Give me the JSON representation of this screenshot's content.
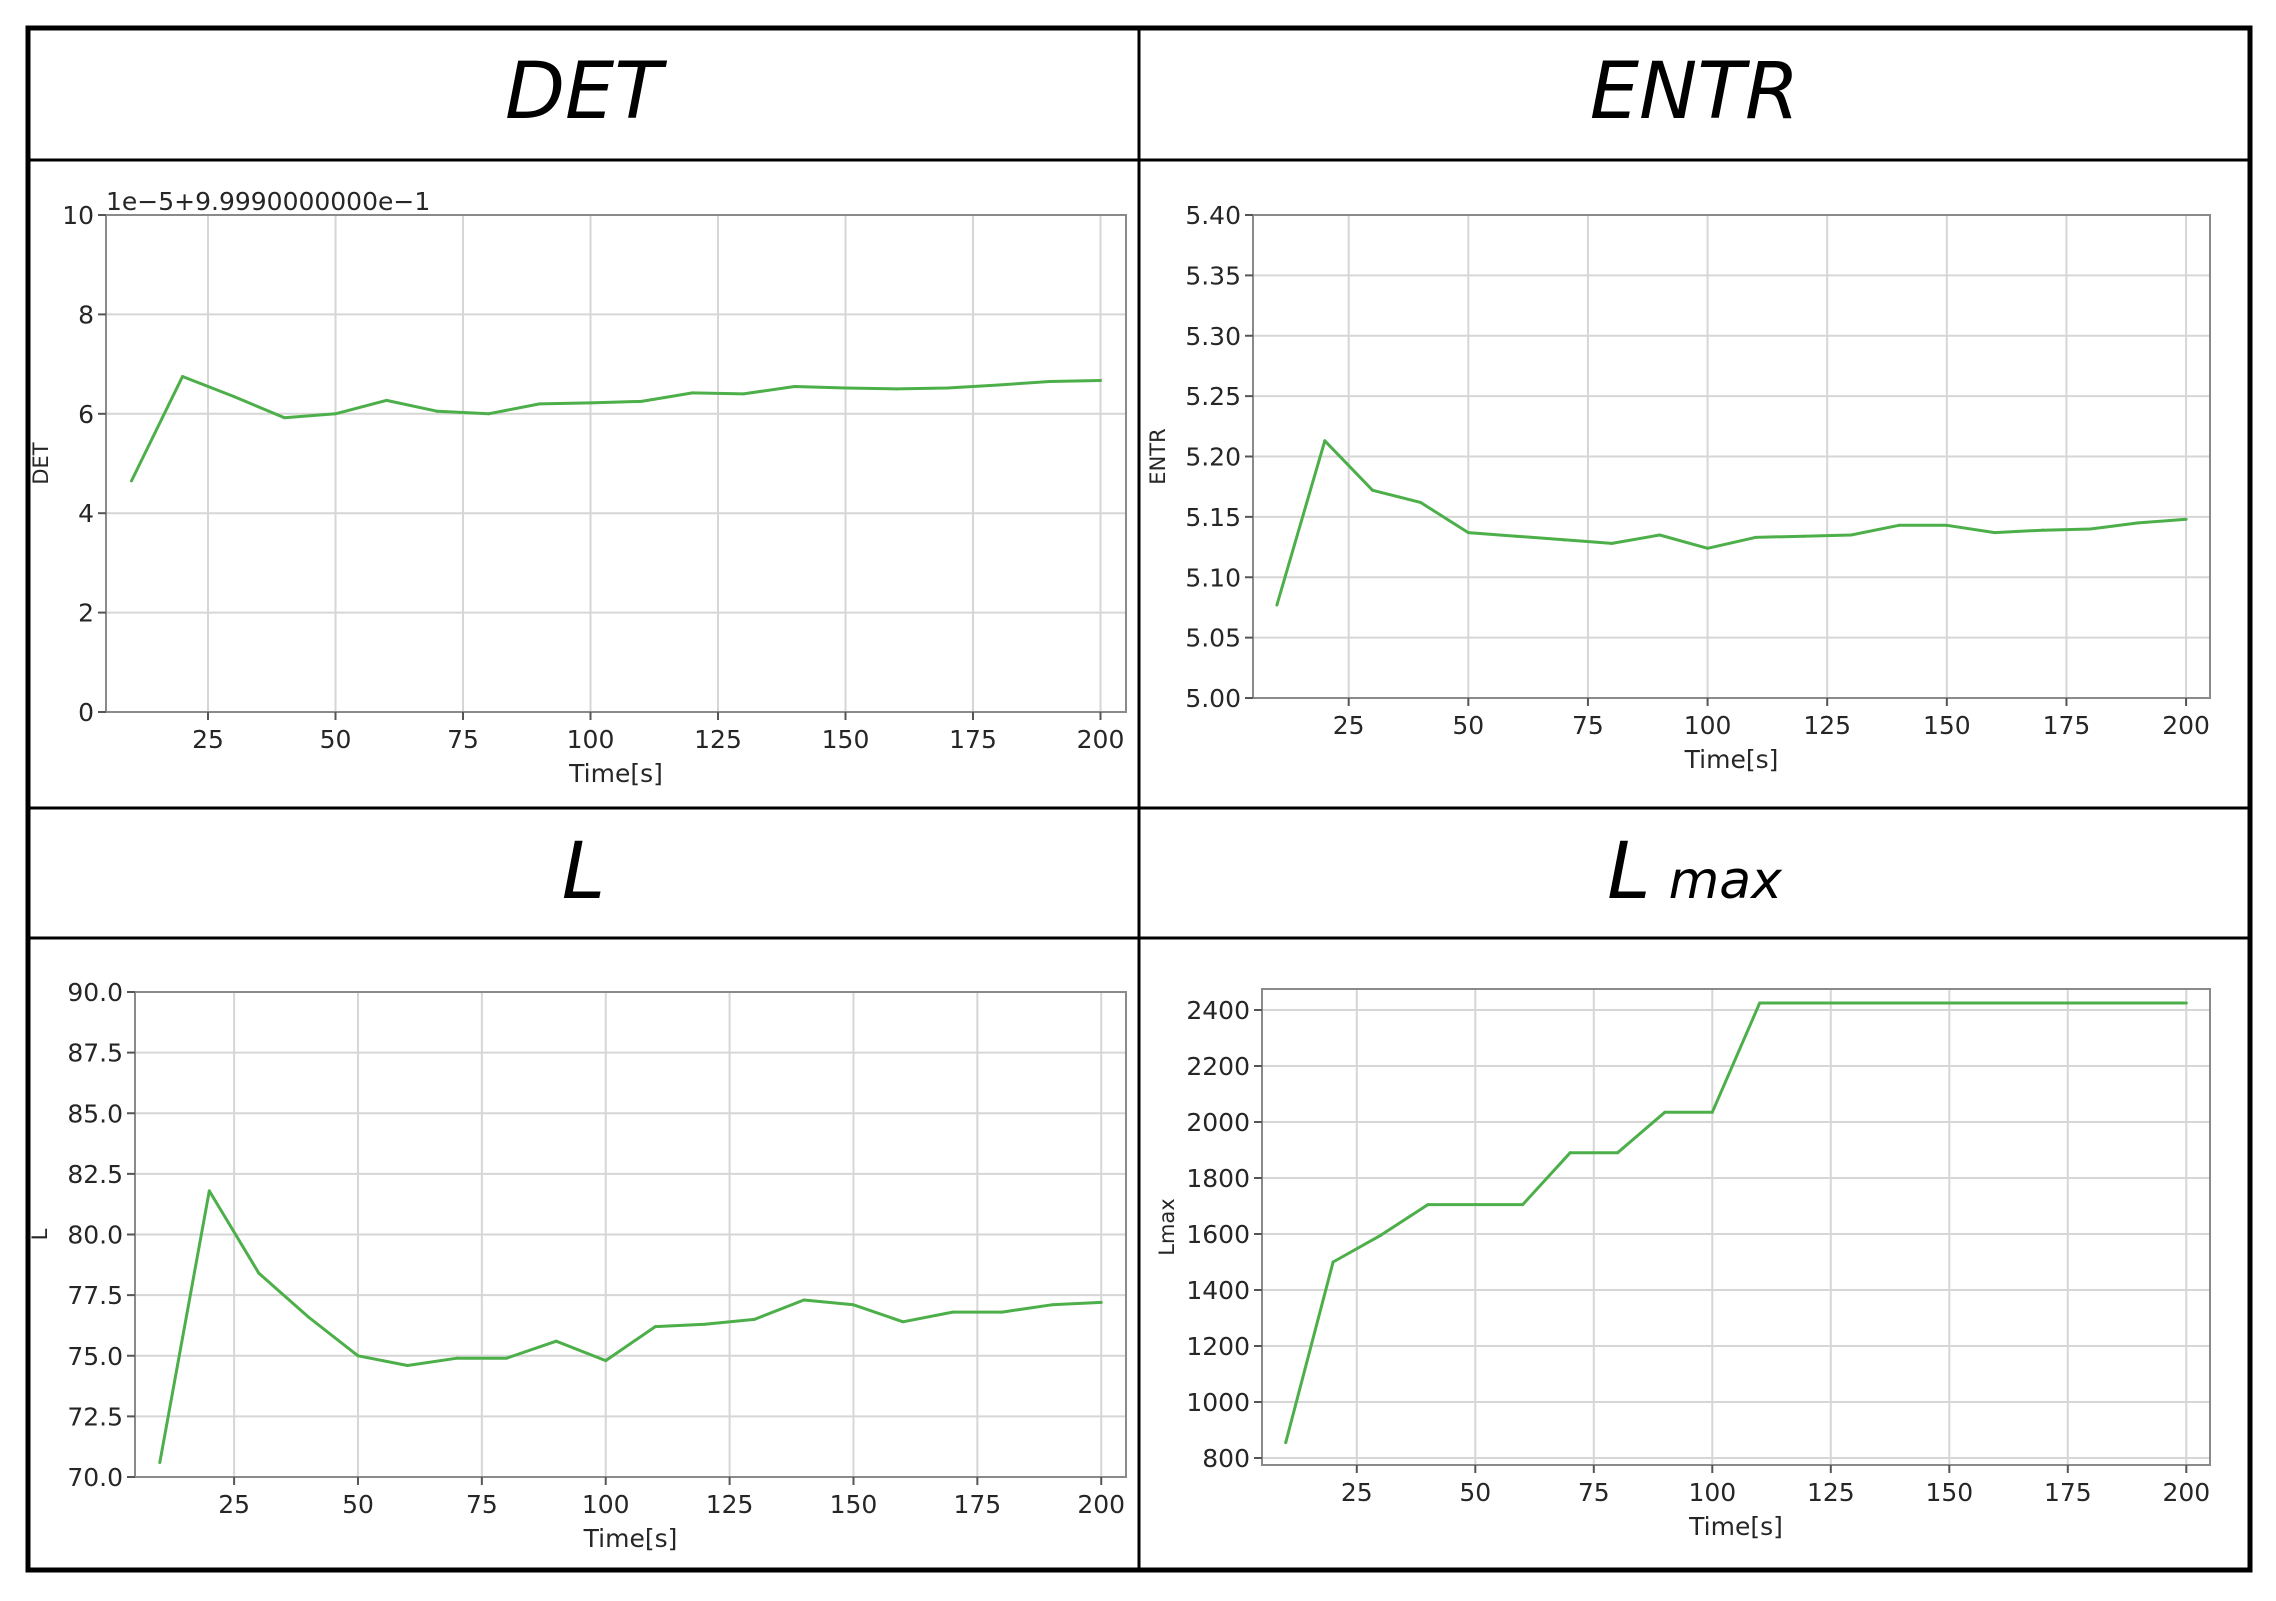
{
  "series_color": "#4daf4a",
  "chart_data": [
    {
      "type": "line",
      "title": "DET",
      "title_sub": "",
      "xlabel": "Time[s]",
      "ylabel": "DET",
      "offset_label": "1e−5+9.9990000000e−1",
      "xlim": [
        5,
        205
      ],
      "ylim": [
        0,
        10
      ],
      "xticks": [
        25,
        50,
        75,
        100,
        125,
        150,
        175,
        200
      ],
      "yticks": [
        0,
        2,
        4,
        6,
        8,
        10
      ],
      "ytick_labels": [
        "0",
        "2",
        "4",
        "6",
        "8",
        "10"
      ],
      "grid": true,
      "x": [
        10,
        20,
        30,
        40,
        50,
        60,
        70,
        80,
        90,
        100,
        110,
        120,
        130,
        140,
        150,
        160,
        170,
        180,
        190,
        200
      ],
      "y": [
        4.65,
        6.75,
        6.35,
        5.92,
        6.0,
        6.27,
        6.05,
        6.0,
        6.2,
        6.22,
        6.25,
        6.42,
        6.4,
        6.55,
        6.52,
        6.5,
        6.52,
        6.58,
        6.65,
        6.67
      ]
    },
    {
      "type": "line",
      "title": "ENTR",
      "title_sub": "",
      "xlabel": "Time[s]",
      "ylabel": "ENTR",
      "offset_label": "",
      "xlim": [
        5,
        205
      ],
      "ylim": [
        5.0,
        5.4
      ],
      "xticks": [
        25,
        50,
        75,
        100,
        125,
        150,
        175,
        200
      ],
      "yticks": [
        5.0,
        5.05,
        5.1,
        5.15,
        5.2,
        5.25,
        5.3,
        5.35,
        5.4
      ],
      "ytick_labels": [
        "5.00",
        "5.05",
        "5.10",
        "5.15",
        "5.20",
        "5.25",
        "5.30",
        "5.35",
        "5.40"
      ],
      "grid": true,
      "x": [
        10,
        20,
        30,
        40,
        50,
        60,
        70,
        80,
        90,
        100,
        110,
        120,
        130,
        140,
        150,
        160,
        170,
        180,
        190,
        200
      ],
      "y": [
        5.077,
        5.213,
        5.172,
        5.162,
        5.137,
        5.134,
        5.131,
        5.128,
        5.135,
        5.124,
        5.133,
        5.134,
        5.135,
        5.143,
        5.143,
        5.137,
        5.139,
        5.14,
        5.145,
        5.148
      ]
    },
    {
      "type": "line",
      "title": "L",
      "title_sub": "",
      "xlabel": "Time[s]",
      "ylabel": "L",
      "offset_label": "",
      "xlim": [
        5,
        205
      ],
      "ylim": [
        70.0,
        90.0
      ],
      "xticks": [
        25,
        50,
        75,
        100,
        125,
        150,
        175,
        200
      ],
      "yticks": [
        70.0,
        72.5,
        75.0,
        77.5,
        80.0,
        82.5,
        85.0,
        87.5,
        90.0
      ],
      "ytick_labels": [
        "70.0",
        "72.5",
        "75.0",
        "77.5",
        "80.0",
        "82.5",
        "85.0",
        "87.5",
        "90.0"
      ],
      "grid": true,
      "x": [
        10,
        20,
        30,
        40,
        50,
        60,
        70,
        80,
        90,
        100,
        110,
        120,
        130,
        140,
        150,
        160,
        170,
        180,
        190,
        200
      ],
      "y": [
        70.6,
        81.8,
        78.4,
        76.6,
        75.0,
        74.6,
        74.9,
        74.9,
        75.6,
        74.8,
        76.2,
        76.3,
        76.5,
        77.3,
        77.1,
        76.4,
        76.8,
        76.8,
        77.1,
        77.2
      ]
    },
    {
      "type": "line",
      "title": "L",
      "title_sub": "max",
      "xlabel": "Time[s]",
      "ylabel": "Lmax",
      "offset_label": "",
      "xlim": [
        5,
        205
      ],
      "ylim": [
        775,
        2475
      ],
      "xticks": [
        25,
        50,
        75,
        100,
        125,
        150,
        175,
        200
      ],
      "yticks": [
        800,
        1000,
        1200,
        1400,
        1600,
        1800,
        2000,
        2200,
        2400
      ],
      "ytick_labels": [
        "800",
        "1000",
        "1200",
        "1400",
        "1600",
        "1800",
        "2000",
        "2200",
        "2400"
      ],
      "grid": true,
      "x": [
        10,
        20,
        30,
        40,
        50,
        60,
        70,
        80,
        90,
        100,
        110,
        120,
        130,
        140,
        150,
        160,
        170,
        180,
        190,
        200
      ],
      "y": [
        855,
        1500,
        1595,
        1705,
        1705,
        1705,
        1890,
        1890,
        2035,
        2035,
        2425,
        2425,
        2425,
        2425,
        2425,
        2425,
        2425,
        2425,
        2425,
        2425
      ]
    }
  ]
}
